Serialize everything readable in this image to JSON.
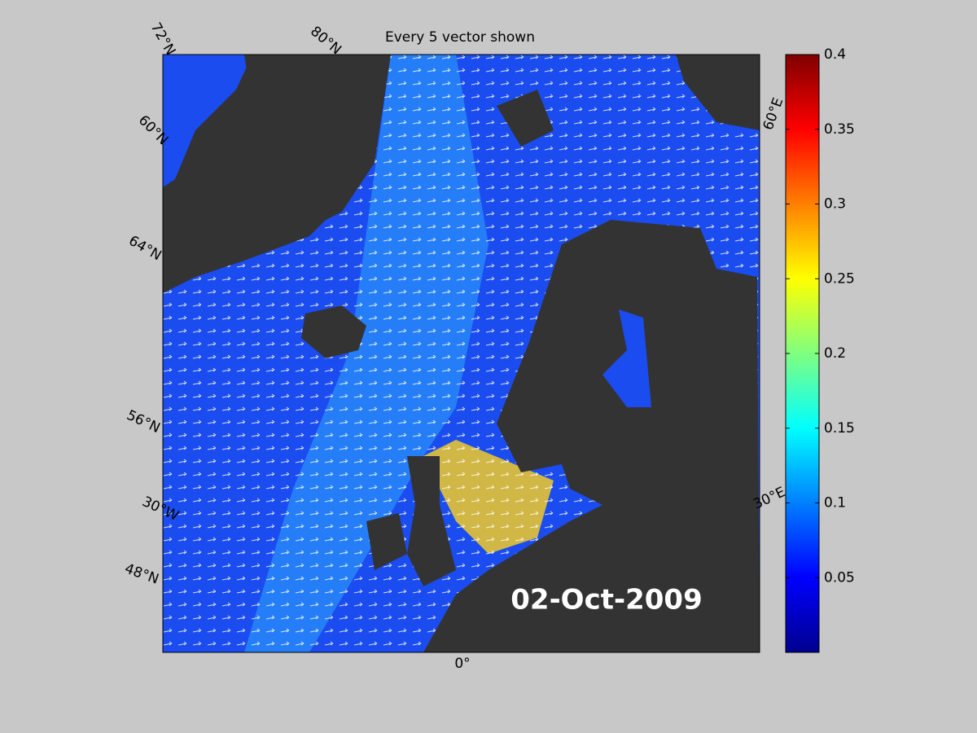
{
  "title": "Every 5 vector shown",
  "date_label": "02-Oct-2009",
  "map_labels": {
    "latitude": [
      "72°N",
      "80°N",
      "60°N",
      "64°N",
      "56°N",
      "48°N"
    ],
    "longitude": [
      "30°W",
      "0°",
      "60°E",
      "30°E"
    ]
  },
  "colorbar": {
    "lim": [
      0,
      0.4
    ],
    "ticks": [
      0.05,
      0.1,
      0.15,
      0.2,
      0.25,
      0.3,
      0.35,
      0.4
    ]
  }
}
